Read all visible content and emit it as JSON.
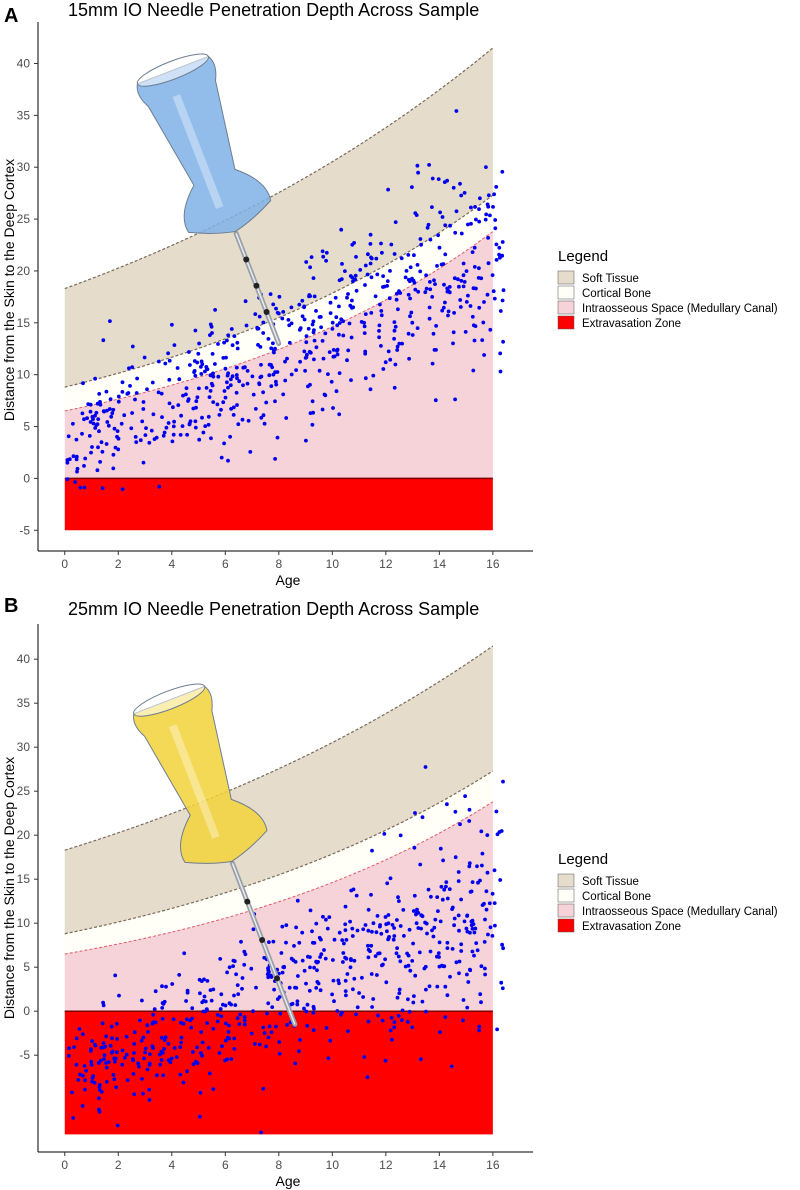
{
  "colors": {
    "soft_tissue": "#e6dccb",
    "cortical_bone": "#fffef7",
    "intraosseous": "#f5d3d9",
    "extravasation": "#ff0000",
    "points": "#0000ee",
    "boundary_dotted": "#7a6a5a",
    "intraosseous_line": "#e05a6a",
    "zero_line": "#7a0000",
    "needle_a": "#7fb2e8",
    "needle_b": "#f2d23a"
  },
  "chart_data": [
    {
      "type": "scatter",
      "panel_label": "A",
      "title": "15mm IO Needle Penetration Depth Across Sample",
      "xlabel": "Age",
      "ylabel": "Distance from the Skin to the Deep Cortex",
      "xlim": [
        -1,
        17.5
      ],
      "ylim": [
        -7,
        44
      ],
      "xticks": [
        0,
        2,
        4,
        6,
        8,
        10,
        12,
        14,
        16
      ],
      "yticks": [
        -5,
        0,
        5,
        10,
        15,
        20,
        25,
        30,
        35,
        40
      ],
      "needle_depth_mm": 15,
      "needle_tip": [
        8.0,
        13.0
      ],
      "bands": {
        "x": [
          0,
          16
        ],
        "soft_tissue_top": [
          18.3,
          41.5
        ],
        "cortical_top": [
          8.8,
          27.3
        ],
        "intraosseous_top": [
          6.5,
          23.8
        ],
        "extravasation_top": 0,
        "extravasation_bottom": -5
      },
      "point_trend": {
        "intercept": 3.2,
        "slope": 1.15,
        "spread": 4.5,
        "count": 640,
        "seed": 11
      },
      "legend": {
        "title": "Legend",
        "items": [
          "Soft Tissue",
          "Cortical Bone",
          "Intraosseous Space (Medullary Canal)",
          "Extravasation Zone"
        ]
      }
    },
    {
      "type": "scatter",
      "panel_label": "B",
      "title": "25mm IO Needle Penetration Depth Across Sample",
      "xlabel": "Age",
      "ylabel": "Distance from the Skin to the Deep Cortex",
      "xlim": [
        -1,
        17.5
      ],
      "ylim": [
        -16,
        44
      ],
      "xticks": [
        0,
        2,
        4,
        6,
        8,
        10,
        12,
        14,
        16
      ],
      "yticks": [
        -5,
        0,
        5,
        10,
        15,
        20,
        25,
        30,
        35,
        40
      ],
      "needle_depth_mm": 25,
      "needle_tip": [
        8.6,
        -1.5
      ],
      "bands": {
        "x": [
          0,
          16
        ],
        "soft_tissue_top": [
          18.3,
          41.5
        ],
        "cortical_top": [
          8.8,
          27.3
        ],
        "intraosseous_top": [
          6.5,
          23.8
        ],
        "extravasation_top": 0,
        "extravasation_bottom": -14
      },
      "point_trend": {
        "intercept": -6.8,
        "slope": 1.15,
        "spread": 4.8,
        "count": 640,
        "seed": 23
      },
      "legend": {
        "title": "Legend",
        "items": [
          "Soft Tissue",
          "Cortical Bone",
          "Intraosseous Space (Medullary Canal)",
          "Extravasation Zone"
        ]
      }
    }
  ]
}
